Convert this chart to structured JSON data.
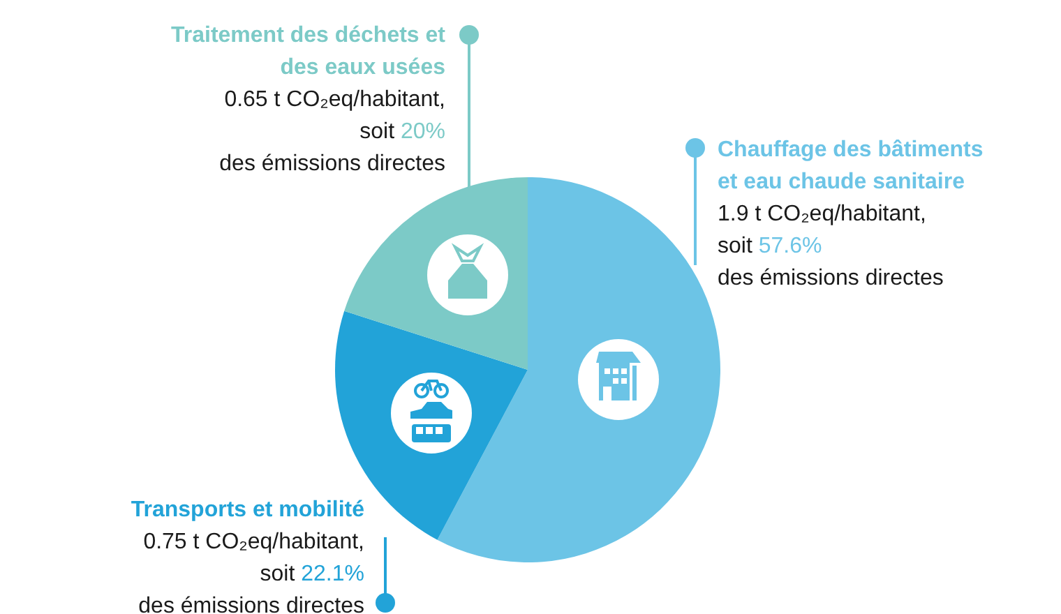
{
  "chart_data": {
    "type": "pie",
    "categories": [
      "Chauffage des bâtiments et eau chaude sanitaire",
      "Transports et mobilité",
      "Traitement des déchets et des eaux usées"
    ],
    "values": [
      57.6,
      22.1,
      20
    ],
    "colors": [
      "#6cc4e6",
      "#22a3d8",
      "#7ccac7"
    ],
    "value_labels": [
      "1.9 t CO₂eq/habitant, soit 57.6% des émissions directes",
      "0.75 t CO₂eq/habitant, soit 22.1% des émissions directes",
      "0.65 t CO₂eq/habitant, soit 20% des émissions directes"
    ]
  }
}
